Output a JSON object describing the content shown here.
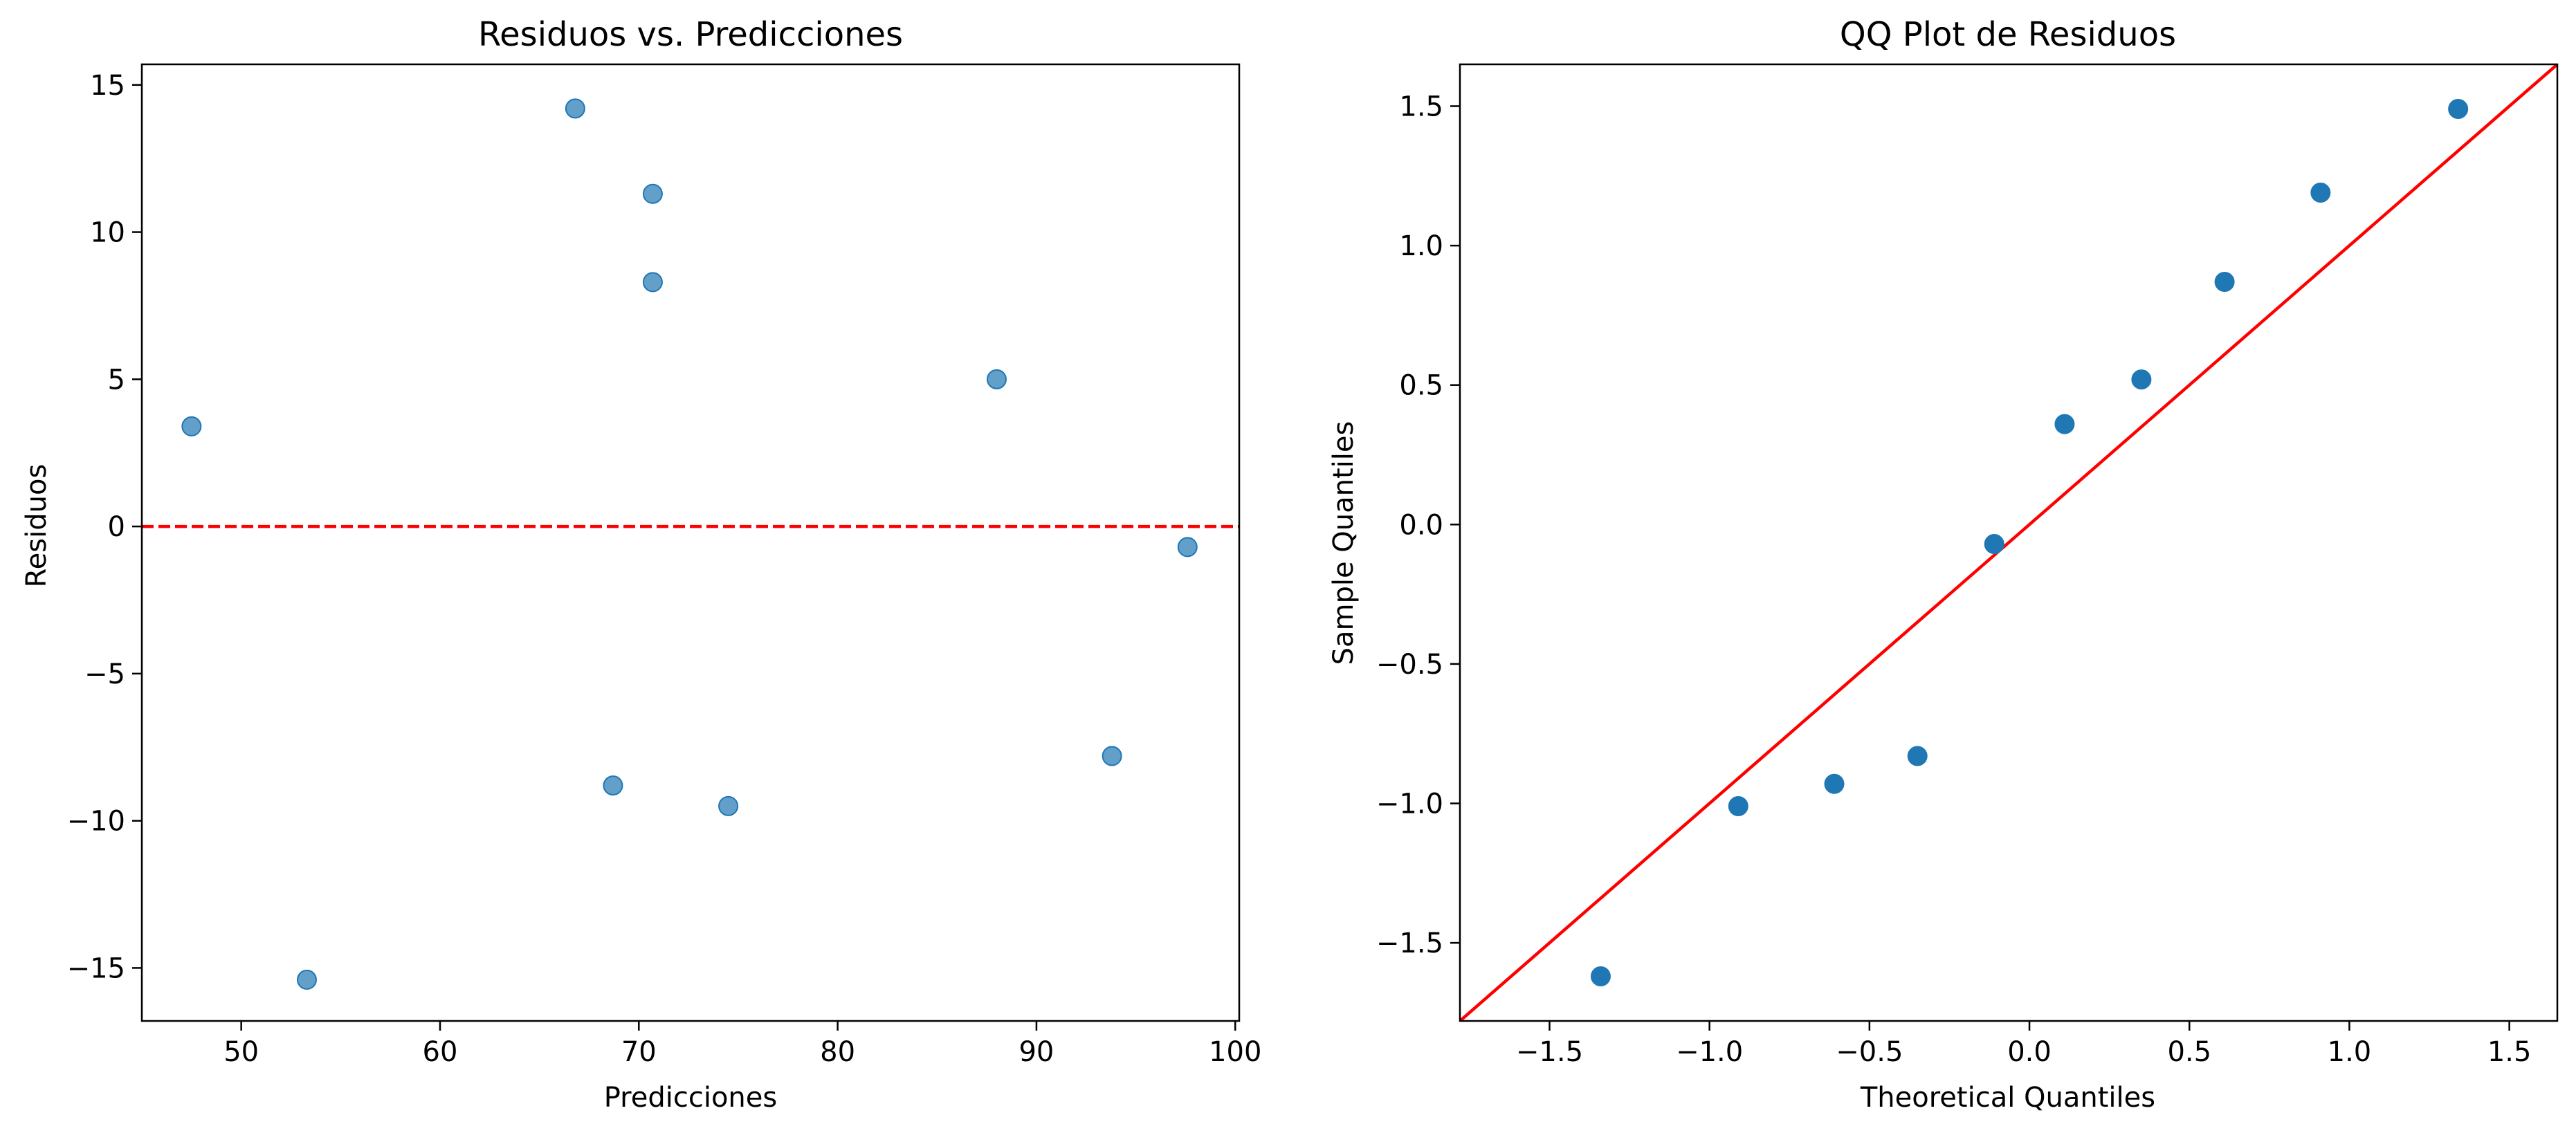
{
  "chart_data": [
    {
      "type": "scatter",
      "title": "Residuos vs. Predicciones",
      "xlabel": "Predicciones",
      "ylabel": "Residuos",
      "xlim": [
        45,
        100.2
      ],
      "ylim": [
        -16.8,
        15.7
      ],
      "xticks": [
        50,
        60,
        70,
        80,
        90,
        100
      ],
      "yticks": [
        -15,
        -10,
        -5,
        0,
        5,
        10,
        15
      ],
      "xtick_labels": [
        "50",
        "60",
        "70",
        "80",
        "90",
        "100"
      ],
      "ytick_labels": [
        "−15",
        "−10",
        "−5",
        "0",
        "5",
        "10",
        "15"
      ],
      "grid": false,
      "point_color": "#1f77b4",
      "point_alpha": 0.7,
      "reference_line": {
        "y": 0,
        "style": "dashed",
        "color": "#ff0000"
      },
      "series": [
        {
          "x": [
            47.5,
            53.3,
            66.8,
            68.7,
            70.7,
            70.7,
            74.5,
            88.0,
            93.8,
            97.6
          ],
          "y": [
            3.4,
            -15.4,
            14.2,
            -8.8,
            11.3,
            8.3,
            -9.5,
            5.0,
            -7.8,
            -0.7
          ]
        }
      ]
    },
    {
      "type": "scatter",
      "title": "QQ Plot de Residuos",
      "xlabel": "Theoretical Quantiles",
      "ylabel": "Sample Quantiles",
      "xlim": [
        -1.78,
        1.65
      ],
      "ylim": [
        -1.78,
        1.65
      ],
      "xticks": [
        -1.5,
        -1.0,
        -0.5,
        0.0,
        0.5,
        1.0,
        1.5
      ],
      "yticks": [
        -1.5,
        -1.0,
        -0.5,
        0.0,
        0.5,
        1.0,
        1.5
      ],
      "xtick_labels": [
        "−1.5",
        "−1.0",
        "−0.5",
        "0.0",
        "0.5",
        "1.0",
        "1.5"
      ],
      "ytick_labels": [
        "−1.5",
        "−1.0",
        "−0.5",
        "0.0",
        "0.5",
        "1.0",
        "1.5"
      ],
      "grid": false,
      "point_color": "#1f77b4",
      "point_alpha": 1.0,
      "reference_line": {
        "slope": 1,
        "intercept": 0,
        "style": "solid",
        "color": "#ff0000"
      },
      "series": [
        {
          "x": [
            -1.34,
            -0.91,
            -0.61,
            -0.35,
            -0.11,
            0.11,
            0.35,
            0.61,
            0.91,
            1.34
          ],
          "y": [
            -1.62,
            -1.01,
            -0.93,
            -0.83,
            -0.07,
            0.36,
            0.52,
            0.87,
            1.19,
            1.49
          ]
        }
      ]
    }
  ]
}
